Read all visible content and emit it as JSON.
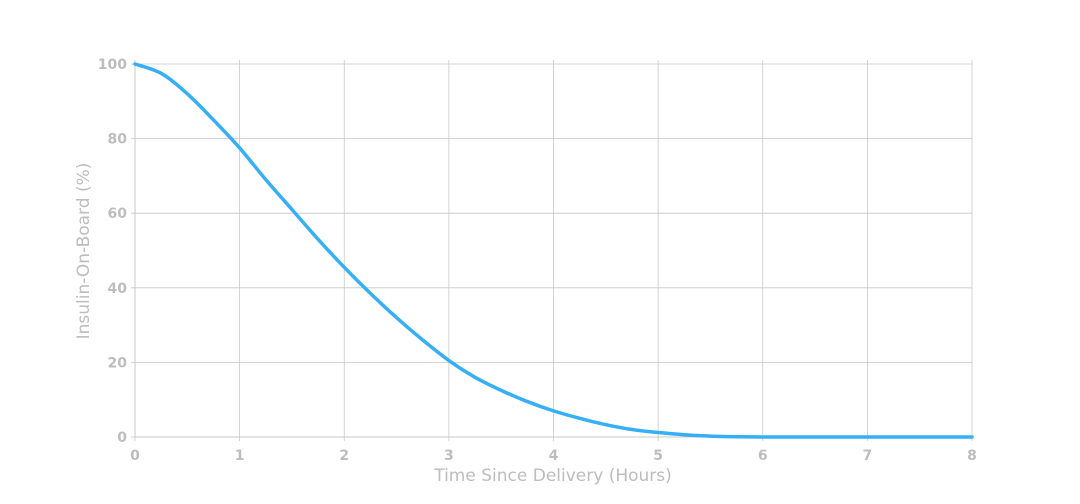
{
  "chart_data": {
    "type": "line",
    "title": "",
    "xlabel": "Time Since Delivery (Hours)",
    "ylabel": "Insulin-On-Board (%)",
    "xlim": [
      0,
      8
    ],
    "ylim": [
      0,
      100
    ],
    "xticks": [
      0,
      1,
      2,
      3,
      4,
      5,
      6,
      7,
      8
    ],
    "yticks": [
      0,
      20,
      40,
      60,
      80,
      100
    ],
    "grid": true,
    "series": [
      {
        "color": "#35aff5",
        "x": [
          0,
          0.25,
          0.5,
          0.75,
          1,
          1.25,
          1.5,
          1.75,
          2,
          2.25,
          2.5,
          2.75,
          3,
          3.25,
          3.5,
          3.75,
          4,
          4.25,
          4.5,
          4.75,
          5,
          5.25,
          5.5,
          5.75,
          6,
          6.5,
          7,
          7.5,
          8
        ],
        "y": [
          100,
          97.5,
          92,
          85,
          77.5,
          69,
          61,
          53,
          45.5,
          38.5,
          32,
          26,
          20.5,
          16,
          12.5,
          9.5,
          7,
          5,
          3.3,
          2,
          1.2,
          0.6,
          0.25,
          0.08,
          0,
          0,
          0,
          0,
          0
        ]
      }
    ]
  }
}
